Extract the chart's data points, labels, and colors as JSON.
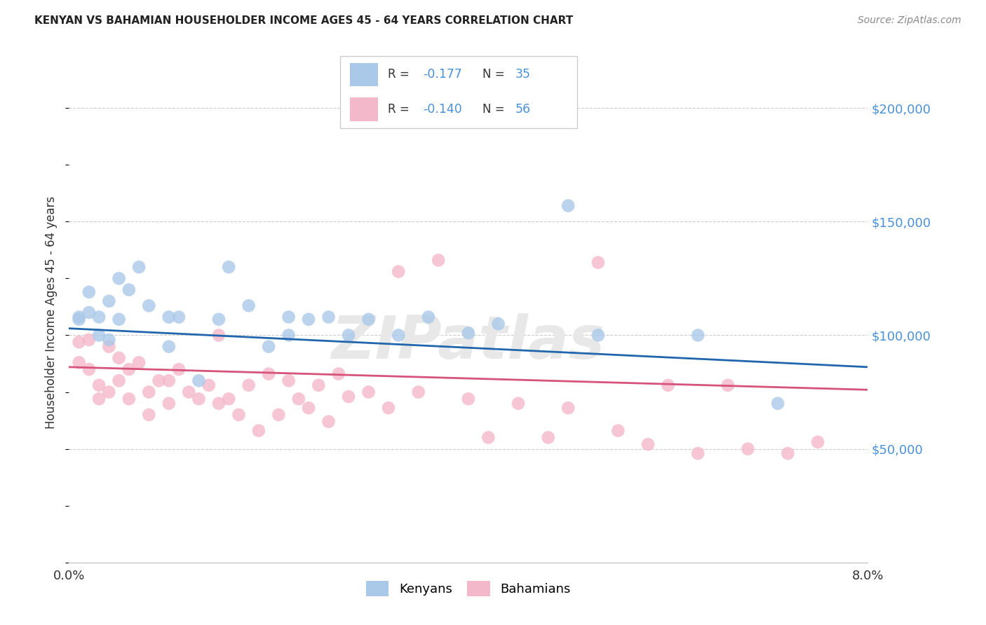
{
  "title": "KENYAN VS BAHAMIAN HOUSEHOLDER INCOME AGES 45 - 64 YEARS CORRELATION CHART",
  "source": "Source: ZipAtlas.com",
  "ylabel": "Householder Income Ages 45 - 64 years",
  "x_min": 0.0,
  "x_max": 0.08,
  "y_min": 0,
  "y_max": 220000,
  "y_ticks": [
    50000,
    100000,
    150000,
    200000
  ],
  "y_tick_labels": [
    "$50,000",
    "$100,000",
    "$150,000",
    "$200,000"
  ],
  "blue_color": "#aac9e8",
  "pink_color": "#f4b8cb",
  "blue_line_color": "#2166ac",
  "pink_line_color": "#d6537a",
  "blue_text_color": "#4a90d9",
  "kenyan_R": -0.177,
  "kenyan_N": 35,
  "bahamian_R": -0.14,
  "bahamian_N": 56,
  "watermark": "ZIPatlas",
  "kenyans_x": [
    0.001,
    0.001,
    0.002,
    0.002,
    0.003,
    0.003,
    0.004,
    0.004,
    0.005,
    0.005,
    0.006,
    0.007,
    0.008,
    0.01,
    0.01,
    0.011,
    0.013,
    0.015,
    0.016,
    0.018,
    0.02,
    0.022,
    0.022,
    0.024,
    0.026,
    0.028,
    0.03,
    0.033,
    0.036,
    0.04,
    0.043,
    0.05,
    0.053,
    0.063,
    0.071
  ],
  "kenyans_y": [
    108000,
    107000,
    119000,
    110000,
    108000,
    100000,
    115000,
    98000,
    125000,
    107000,
    120000,
    130000,
    113000,
    108000,
    95000,
    108000,
    80000,
    107000,
    130000,
    113000,
    95000,
    108000,
    100000,
    107000,
    108000,
    100000,
    107000,
    100000,
    108000,
    101000,
    105000,
    157000,
    100000,
    100000,
    70000
  ],
  "bahamians_x": [
    0.001,
    0.001,
    0.002,
    0.002,
    0.003,
    0.003,
    0.004,
    0.004,
    0.005,
    0.005,
    0.006,
    0.006,
    0.007,
    0.008,
    0.008,
    0.009,
    0.01,
    0.01,
    0.011,
    0.012,
    0.013,
    0.014,
    0.015,
    0.015,
    0.016,
    0.017,
    0.018,
    0.019,
    0.02,
    0.021,
    0.022,
    0.023,
    0.024,
    0.025,
    0.026,
    0.027,
    0.028,
    0.03,
    0.032,
    0.033,
    0.035,
    0.037,
    0.04,
    0.042,
    0.045,
    0.048,
    0.05,
    0.053,
    0.055,
    0.058,
    0.06,
    0.063,
    0.066,
    0.068,
    0.072,
    0.075
  ],
  "bahamians_y": [
    97000,
    88000,
    98000,
    85000,
    78000,
    72000,
    95000,
    75000,
    90000,
    80000,
    72000,
    85000,
    88000,
    75000,
    65000,
    80000,
    70000,
    80000,
    85000,
    75000,
    72000,
    78000,
    70000,
    100000,
    72000,
    65000,
    78000,
    58000,
    83000,
    65000,
    80000,
    72000,
    68000,
    78000,
    62000,
    83000,
    73000,
    75000,
    68000,
    128000,
    75000,
    133000,
    72000,
    55000,
    70000,
    55000,
    68000,
    132000,
    58000,
    52000,
    78000,
    48000,
    78000,
    50000,
    48000,
    53000
  ]
}
